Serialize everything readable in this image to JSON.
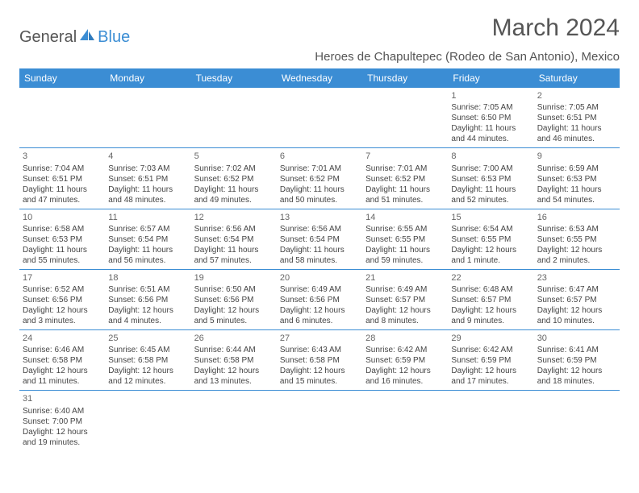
{
  "brand": {
    "part1": "General",
    "part2": "Blue"
  },
  "title": "March 2024",
  "subtitle": "Heroes de Chapultepec (Rodeo de San Antonio), Mexico",
  "colors": {
    "header_bg": "#3b8dd4",
    "header_fg": "#ffffff",
    "border": "#3b8dd4"
  },
  "days_of_week": [
    "Sunday",
    "Monday",
    "Tuesday",
    "Wednesday",
    "Thursday",
    "Friday",
    "Saturday"
  ],
  "weeks": [
    [
      null,
      null,
      null,
      null,
      null,
      {
        "n": "1",
        "sr": "Sunrise: 7:05 AM",
        "ss": "Sunset: 6:50 PM",
        "dl1": "Daylight: 11 hours",
        "dl2": "and 44 minutes."
      },
      {
        "n": "2",
        "sr": "Sunrise: 7:05 AM",
        "ss": "Sunset: 6:51 PM",
        "dl1": "Daylight: 11 hours",
        "dl2": "and 46 minutes."
      }
    ],
    [
      {
        "n": "3",
        "sr": "Sunrise: 7:04 AM",
        "ss": "Sunset: 6:51 PM",
        "dl1": "Daylight: 11 hours",
        "dl2": "and 47 minutes."
      },
      {
        "n": "4",
        "sr": "Sunrise: 7:03 AM",
        "ss": "Sunset: 6:51 PM",
        "dl1": "Daylight: 11 hours",
        "dl2": "and 48 minutes."
      },
      {
        "n": "5",
        "sr": "Sunrise: 7:02 AM",
        "ss": "Sunset: 6:52 PM",
        "dl1": "Daylight: 11 hours",
        "dl2": "and 49 minutes."
      },
      {
        "n": "6",
        "sr": "Sunrise: 7:01 AM",
        "ss": "Sunset: 6:52 PM",
        "dl1": "Daylight: 11 hours",
        "dl2": "and 50 minutes."
      },
      {
        "n": "7",
        "sr": "Sunrise: 7:01 AM",
        "ss": "Sunset: 6:52 PM",
        "dl1": "Daylight: 11 hours",
        "dl2": "and 51 minutes."
      },
      {
        "n": "8",
        "sr": "Sunrise: 7:00 AM",
        "ss": "Sunset: 6:53 PM",
        "dl1": "Daylight: 11 hours",
        "dl2": "and 52 minutes."
      },
      {
        "n": "9",
        "sr": "Sunrise: 6:59 AM",
        "ss": "Sunset: 6:53 PM",
        "dl1": "Daylight: 11 hours",
        "dl2": "and 54 minutes."
      }
    ],
    [
      {
        "n": "10",
        "sr": "Sunrise: 6:58 AM",
        "ss": "Sunset: 6:53 PM",
        "dl1": "Daylight: 11 hours",
        "dl2": "and 55 minutes."
      },
      {
        "n": "11",
        "sr": "Sunrise: 6:57 AM",
        "ss": "Sunset: 6:54 PM",
        "dl1": "Daylight: 11 hours",
        "dl2": "and 56 minutes."
      },
      {
        "n": "12",
        "sr": "Sunrise: 6:56 AM",
        "ss": "Sunset: 6:54 PM",
        "dl1": "Daylight: 11 hours",
        "dl2": "and 57 minutes."
      },
      {
        "n": "13",
        "sr": "Sunrise: 6:56 AM",
        "ss": "Sunset: 6:54 PM",
        "dl1": "Daylight: 11 hours",
        "dl2": "and 58 minutes."
      },
      {
        "n": "14",
        "sr": "Sunrise: 6:55 AM",
        "ss": "Sunset: 6:55 PM",
        "dl1": "Daylight: 11 hours",
        "dl2": "and 59 minutes."
      },
      {
        "n": "15",
        "sr": "Sunrise: 6:54 AM",
        "ss": "Sunset: 6:55 PM",
        "dl1": "Daylight: 12 hours",
        "dl2": "and 1 minute."
      },
      {
        "n": "16",
        "sr": "Sunrise: 6:53 AM",
        "ss": "Sunset: 6:55 PM",
        "dl1": "Daylight: 12 hours",
        "dl2": "and 2 minutes."
      }
    ],
    [
      {
        "n": "17",
        "sr": "Sunrise: 6:52 AM",
        "ss": "Sunset: 6:56 PM",
        "dl1": "Daylight: 12 hours",
        "dl2": "and 3 minutes."
      },
      {
        "n": "18",
        "sr": "Sunrise: 6:51 AM",
        "ss": "Sunset: 6:56 PM",
        "dl1": "Daylight: 12 hours",
        "dl2": "and 4 minutes."
      },
      {
        "n": "19",
        "sr": "Sunrise: 6:50 AM",
        "ss": "Sunset: 6:56 PM",
        "dl1": "Daylight: 12 hours",
        "dl2": "and 5 minutes."
      },
      {
        "n": "20",
        "sr": "Sunrise: 6:49 AM",
        "ss": "Sunset: 6:56 PM",
        "dl1": "Daylight: 12 hours",
        "dl2": "and 6 minutes."
      },
      {
        "n": "21",
        "sr": "Sunrise: 6:49 AM",
        "ss": "Sunset: 6:57 PM",
        "dl1": "Daylight: 12 hours",
        "dl2": "and 8 minutes."
      },
      {
        "n": "22",
        "sr": "Sunrise: 6:48 AM",
        "ss": "Sunset: 6:57 PM",
        "dl1": "Daylight: 12 hours",
        "dl2": "and 9 minutes."
      },
      {
        "n": "23",
        "sr": "Sunrise: 6:47 AM",
        "ss": "Sunset: 6:57 PM",
        "dl1": "Daylight: 12 hours",
        "dl2": "and 10 minutes."
      }
    ],
    [
      {
        "n": "24",
        "sr": "Sunrise: 6:46 AM",
        "ss": "Sunset: 6:58 PM",
        "dl1": "Daylight: 12 hours",
        "dl2": "and 11 minutes."
      },
      {
        "n": "25",
        "sr": "Sunrise: 6:45 AM",
        "ss": "Sunset: 6:58 PM",
        "dl1": "Daylight: 12 hours",
        "dl2": "and 12 minutes."
      },
      {
        "n": "26",
        "sr": "Sunrise: 6:44 AM",
        "ss": "Sunset: 6:58 PM",
        "dl1": "Daylight: 12 hours",
        "dl2": "and 13 minutes."
      },
      {
        "n": "27",
        "sr": "Sunrise: 6:43 AM",
        "ss": "Sunset: 6:58 PM",
        "dl1": "Daylight: 12 hours",
        "dl2": "and 15 minutes."
      },
      {
        "n": "28",
        "sr": "Sunrise: 6:42 AM",
        "ss": "Sunset: 6:59 PM",
        "dl1": "Daylight: 12 hours",
        "dl2": "and 16 minutes."
      },
      {
        "n": "29",
        "sr": "Sunrise: 6:42 AM",
        "ss": "Sunset: 6:59 PM",
        "dl1": "Daylight: 12 hours",
        "dl2": "and 17 minutes."
      },
      {
        "n": "30",
        "sr": "Sunrise: 6:41 AM",
        "ss": "Sunset: 6:59 PM",
        "dl1": "Daylight: 12 hours",
        "dl2": "and 18 minutes."
      }
    ],
    [
      {
        "n": "31",
        "sr": "Sunrise: 6:40 AM",
        "ss": "Sunset: 7:00 PM",
        "dl1": "Daylight: 12 hours",
        "dl2": "and 19 minutes."
      },
      null,
      null,
      null,
      null,
      null,
      null
    ]
  ]
}
